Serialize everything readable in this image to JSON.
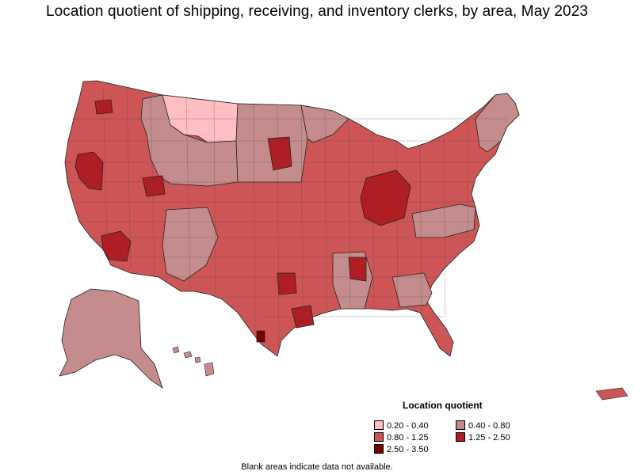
{
  "title": "Location quotient of shipping, receiving, and inventory clerks, by area, May 2023",
  "legend": {
    "title": "Location quotient",
    "items": [
      {
        "label": "0.20 - 0.40",
        "color": "#ffbec2"
      },
      {
        "label": "0.40 - 0.80",
        "color": "#c48c8c"
      },
      {
        "label": "0.80 - 1.25",
        "color": "#cd5555"
      },
      {
        "label": "1.25 - 2.50",
        "color": "#b01e24"
      },
      {
        "label": "2.50 - 3.50",
        "color": "#7a0000"
      }
    ]
  },
  "footnote": "Blank areas indicate data not available."
}
